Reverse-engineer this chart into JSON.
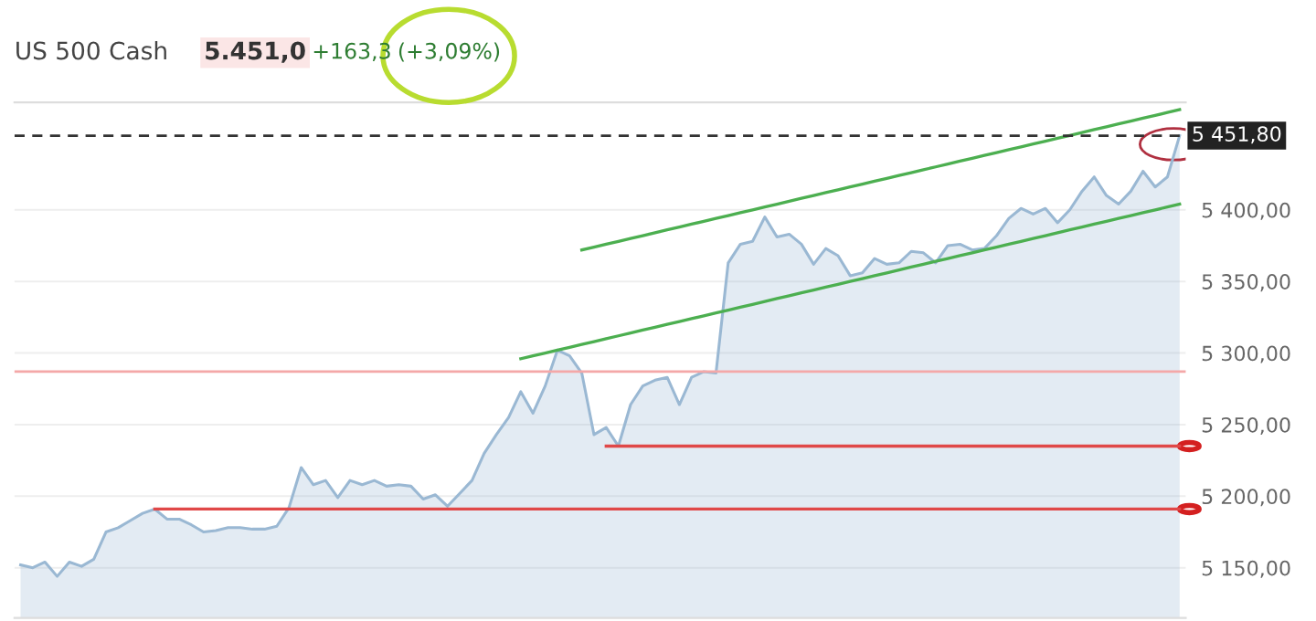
{
  "chart_data": {
    "type": "area",
    "title": "US 500 Cash",
    "annotations": [
      "5.451,0",
      "+163,3",
      "(+3,09%)"
    ],
    "categories": [
      null,
      null,
      null,
      null,
      null,
      null,
      null,
      null,
      null,
      null,
      null,
      null,
      null,
      null,
      null,
      null,
      null,
      null,
      null,
      null,
      null,
      null,
      null,
      null,
      null,
      null,
      null,
      null,
      null,
      null,
      null,
      null,
      null,
      null,
      null,
      null,
      null,
      null,
      null,
      null,
      null,
      null,
      null,
      null,
      null,
      null,
      null,
      null,
      null,
      null,
      null,
      null,
      null,
      null,
      null,
      null,
      null,
      null,
      null,
      null,
      null,
      null,
      null,
      null,
      null,
      null,
      null,
      null,
      null,
      null,
      null,
      null,
      null,
      null,
      null,
      null,
      null,
      null,
      null,
      null,
      null,
      null,
      null,
      null,
      null,
      null,
      null,
      null,
      null,
      null,
      null,
      null,
      null,
      null,
      null,
      null
    ],
    "series": [
      {
        "color": "#9ab8d3",
        "values": [
          5152,
          5150,
          5154,
          5144,
          5154,
          5151,
          5156,
          5175,
          5178,
          5183,
          5188,
          5191,
          5184,
          5184,
          5180,
          5175,
          5176,
          5178,
          5178,
          5177,
          5177,
          5179,
          5192,
          5220,
          5208,
          5211,
          5199,
          5211,
          5208,
          5211,
          5207,
          5208,
          5207,
          5198,
          5201,
          5193,
          5202,
          5211,
          5230,
          5243,
          5255,
          5273,
          5258,
          5277,
          5302,
          5298,
          5286,
          5243,
          5248,
          5235,
          5264,
          5277,
          5281,
          5283,
          5264,
          5283,
          5287,
          5286,
          5363,
          5376,
          5378,
          5395,
          5381,
          5383,
          5376,
          5362,
          5373,
          5368,
          5354,
          5356,
          5366,
          5362,
          5363,
          5371,
          5370,
          5363,
          5375,
          5376,
          5372,
          5373,
          5382,
          5394,
          5401,
          5397,
          5401,
          5391,
          5400,
          5413,
          5423,
          5410,
          5404,
          5413,
          5427,
          5416,
          5423,
          5451.8
        ]
      },
      {
        "type": "line",
        "color": "#4caf50",
        "values": [
          null,
          null,
          null,
          null,
          null,
          null,
          null,
          null,
          null,
          null,
          null,
          null,
          null,
          null,
          null,
          null,
          null,
          null,
          null,
          null,
          null,
          null,
          null,
          null,
          null,
          null,
          null,
          null,
          null,
          null,
          null,
          null,
          null,
          null,
          null,
          null,
          null,
          null,
          null,
          null,
          null,
          null,
          null,
          null,
          null,
          null,
          5372,
          5374,
          5376,
          5378,
          5380,
          5382,
          5384,
          5386,
          5388,
          5390,
          5392,
          5394,
          5396,
          5398,
          5400,
          5402,
          5404,
          5406,
          5408,
          5410,
          5412,
          5414,
          5416,
          5418,
          5420,
          5422,
          5424,
          5426,
          5428,
          5430,
          5432,
          5434,
          5436,
          5438,
          5440,
          5442,
          5444,
          5446,
          5448,
          5450,
          5452,
          5454,
          5456,
          5458,
          5460,
          5462,
          5464,
          5466,
          5468,
          5470
        ]
      },
      {
        "type": "line",
        "color": "#4caf50",
        "values": [
          null,
          null,
          null,
          null,
          null,
          null,
          null,
          null,
          null,
          null,
          null,
          null,
          null,
          null,
          null,
          null,
          null,
          null,
          null,
          null,
          null,
          null,
          null,
          null,
          null,
          null,
          null,
          null,
          null,
          null,
          null,
          null,
          null,
          null,
          null,
          null,
          null,
          null,
          null,
          null,
          null,
          5296,
          5298,
          5300,
          5302,
          5304,
          5306,
          5308,
          5310,
          5312,
          5314,
          5316,
          5318,
          5320,
          5322,
          5324,
          5326,
          5328,
          5330,
          5332,
          5334,
          5336,
          5338,
          5340,
          5342,
          5344,
          5346,
          5348,
          5350,
          5352,
          5354,
          5356,
          5358,
          5360,
          5362,
          5364,
          5366,
          5368,
          5370,
          5372,
          5374,
          5376,
          5378,
          5380,
          5382,
          5384,
          5386,
          5388,
          5390,
          5392,
          5394,
          5396,
          5398,
          5400,
          5402,
          5404
        ]
      },
      {
        "type": "line",
        "color": "#e04848",
        "values": [
          null,
          null,
          null,
          null,
          null,
          null,
          null,
          null,
          null,
          null,
          null,
          5191,
          5191,
          5191,
          5191,
          5191,
          5191,
          5191,
          5191,
          5191,
          5191,
          5191,
          5191,
          5191,
          5191,
          5191,
          5191,
          5191,
          5191,
          5191,
          5191,
          5191,
          5191,
          5191,
          5191,
          5191,
          5191,
          5191,
          5191,
          5191,
          5191,
          5191,
          5191,
          5191,
          5191,
          5191,
          5191,
          5191,
          5191,
          5191,
          5191,
          5191,
          5191,
          5191,
          5191,
          5191,
          5191,
          5191,
          5191,
          5191,
          5191,
          5191,
          5191,
          5191,
          5191,
          5191,
          5191,
          5191,
          5191,
          5191,
          5191,
          5191,
          5191,
          5191,
          5191,
          5191,
          5191,
          5191,
          5191,
          5191,
          5191,
          5191,
          5191,
          5191,
          5191,
          5191,
          5191,
          5191,
          5191,
          5191,
          5191,
          5191,
          5191,
          5191,
          5191,
          5191
        ]
      },
      {
        "type": "line",
        "color": "#e04848",
        "values": [
          null,
          null,
          null,
          null,
          null,
          null,
          null,
          null,
          null,
          null,
          null,
          null,
          null,
          null,
          null,
          null,
          null,
          null,
          null,
          null,
          null,
          null,
          null,
          null,
          null,
          null,
          null,
          null,
          null,
          null,
          null,
          null,
          null,
          null,
          null,
          null,
          null,
          null,
          null,
          null,
          null,
          null,
          null,
          null,
          null,
          null,
          null,
          null,
          5235,
          5235,
          5235,
          5235,
          5235,
          5235,
          5235,
          5235,
          5235,
          5235,
          5235,
          5235,
          5235,
          5235,
          5235,
          5235,
          5235,
          5235,
          5235,
          5235,
          5235,
          5235,
          5235,
          5235,
          5235,
          5235,
          5235,
          5235,
          5235,
          5235,
          5235,
          5235,
          5235,
          5235,
          5235,
          5235,
          5235,
          5235,
          5235,
          5235,
          5235,
          5235,
          5235,
          5235,
          5235,
          5235,
          5235,
          5235
        ]
      }
    ],
    "ref_lines": [
      {
        "axis": "y",
        "value": 5287,
        "color": "#f4a8a8",
        "line_style": "solid"
      },
      {
        "axis": "y",
        "value": 5451.8,
        "label": "5 451,80",
        "color": "#333333",
        "line_style": "dashed"
      }
    ],
    "ylim": [
      5115,
      5475
    ],
    "yticks": [
      {
        "value": 5150,
        "label": "5 150,00"
      },
      {
        "value": 5200,
        "label": "5 200,00"
      },
      {
        "value": 5250,
        "label": "5 250,00"
      },
      {
        "value": 5300,
        "label": "5 300,00"
      },
      {
        "value": 5350,
        "label": "5 350,00"
      },
      {
        "value": 5400,
        "label": "5 400,00"
      }
    ],
    "grid": "y",
    "tick_labels": "y"
  }
}
